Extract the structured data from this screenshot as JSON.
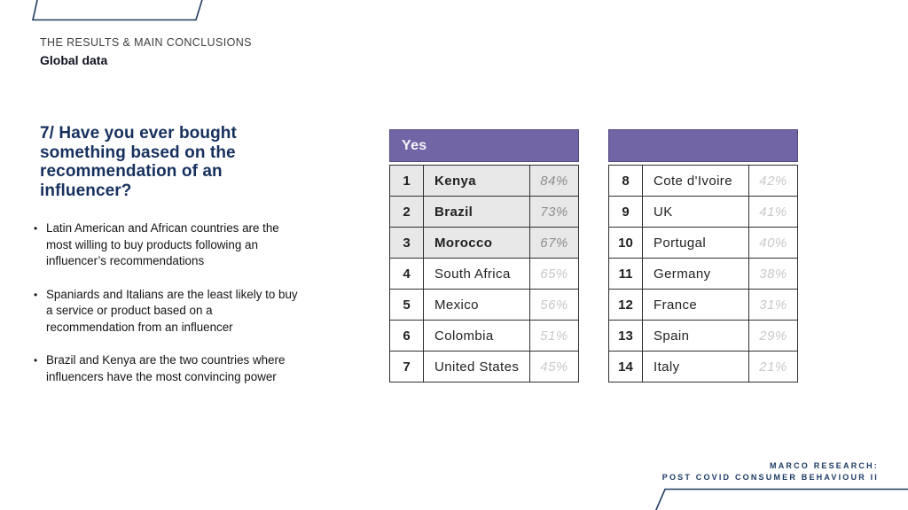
{
  "page": {
    "kicker": "THE RESULTS & MAIN CONCLUSIONS",
    "subtitle": "Global data"
  },
  "question": {
    "title": "7/ Have you ever bought something based on the recommendation of an influencer?"
  },
  "bullets": [
    "Latin American and African countries are the most willing to buy products following an influencer’s recommendations",
    "Spaniards and Italians are the least likely to buy a service or product based on a recommendation from an influencer",
    "Brazil and Kenya are the two countries where influencers have the most convincing power"
  ],
  "tables": [
    {
      "header": "Yes",
      "rows": [
        {
          "rank": "1",
          "country": "Kenya",
          "value": "84%",
          "highlight": true
        },
        {
          "rank": "2",
          "country": "Brazil",
          "value": "73%",
          "highlight": true
        },
        {
          "rank": "3",
          "country": "Morocco",
          "value": "67%",
          "highlight": true
        },
        {
          "rank": "4",
          "country": "South Africa",
          "value": "65%",
          "highlight": false
        },
        {
          "rank": "5",
          "country": "Mexico",
          "value": "56%",
          "highlight": false
        },
        {
          "rank": "6",
          "country": "Colombia",
          "value": "51%",
          "highlight": false
        },
        {
          "rank": "7",
          "country": "United States",
          "value": "45%",
          "highlight": false
        }
      ]
    },
    {
      "header": "",
      "rows": [
        {
          "rank": "8",
          "country": "Cote d'Ivoire",
          "value": "42%",
          "highlight": false
        },
        {
          "rank": "9",
          "country": "UK",
          "value": "41%",
          "highlight": false
        },
        {
          "rank": "10",
          "country": "Portugal",
          "value": "40%",
          "highlight": false
        },
        {
          "rank": "11",
          "country": "Germany",
          "value": "38%",
          "highlight": false
        },
        {
          "rank": "12",
          "country": "France",
          "value": "31%",
          "highlight": false
        },
        {
          "rank": "13",
          "country": "Spain",
          "value": "29%",
          "highlight": false
        },
        {
          "rank": "14",
          "country": "Italy",
          "value": "21%",
          "highlight": false
        }
      ]
    }
  ],
  "footer": {
    "line1": "MARCO RESEARCH:",
    "line2": "POST COVID CONSUMER BEHAVIOUR II"
  },
  "colors": {
    "accent_purple": "#7165a6",
    "navy_title": "#16305e",
    "navy_stroke": "#1f3a5e",
    "row_gray": "#e9e8e8",
    "pct_dark": "#8d8d8d",
    "pct_light": "#c9c9c9",
    "table_border": "#2f2f2f"
  },
  "chart_data": {
    "type": "table",
    "title": "Have you ever bought something based on the recommendation of an influencer? (% answering Yes)",
    "categories": [
      "Kenya",
      "Brazil",
      "Morocco",
      "South Africa",
      "Mexico",
      "Colombia",
      "United States",
      "Cote d'Ivoire",
      "UK",
      "Portugal",
      "Germany",
      "France",
      "Spain",
      "Italy"
    ],
    "values": [
      84,
      73,
      67,
      65,
      56,
      51,
      45,
      42,
      41,
      40,
      38,
      31,
      29,
      21
    ]
  }
}
